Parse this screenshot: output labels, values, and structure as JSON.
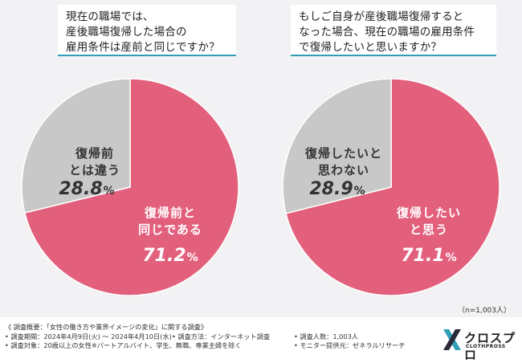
{
  "colors": {
    "pink": "#e3607d",
    "gray": "#c8c8c8",
    "accent": "#2f9fb8",
    "panel": "#f2f2f4"
  },
  "charts": [
    {
      "question_lines": [
        "現在の職場では、",
        "産後職場復帰した場合の",
        "雇用条件は産前と同じですか？"
      ],
      "label_lines": {
        "segment-0": [
          "復帰前と",
          "同じである"
        ],
        "segment-1": [
          "復帰前",
          "とは違う"
        ]
      }
    },
    {
      "question_lines": [
        "もしご自身が産後職場復帰すると",
        "なった場合、現在の職場の雇用条件",
        "で復帰したいと思いますか？"
      ],
      "label_lines": {
        "segment-0": [
          "復帰したい",
          "と思う"
        ],
        "segment-1": [
          "復帰したいと",
          "思わない"
        ]
      }
    }
  ],
  "chart_data": [
    {
      "type": "pie",
      "title": "現在の職場では、産後職場復帰した場合の雇用条件は産前と同じですか？",
      "categories": [
        "復帰前と同じである",
        "復帰前とは違う"
      ],
      "values": [
        71.2,
        28.8
      ],
      "value_labels": [
        {
          "num": "71.2",
          "sign": "%"
        },
        {
          "num": "28.8",
          "sign": "%"
        }
      ]
    },
    {
      "type": "pie",
      "title": "もしご自身が産後職場復帰するとなった場合、現在の職場の雇用条件で復帰したいと思いますか？",
      "categories": [
        "復帰したいと思う",
        "復帰したいと思わない"
      ],
      "values": [
        71.1,
        28.9
      ],
      "value_labels": [
        {
          "num": "71.1",
          "sign": "%"
        },
        {
          "num": "28.9",
          "sign": "%"
        }
      ]
    }
  ],
  "sample_note": "（n=1,003人）",
  "footer": {
    "survey_title": "《 調査概要：「女性の働き方や業界イメージの変化」に関する調査》",
    "period": "• 調査期間：2024年4月9日(火) ～ 2024年4月10日(水)",
    "method": "• 調査方法：インターネット調査",
    "count": "• 調査人数：1,003人",
    "target": "• 調査対象：20歳以上の女性※パートアルバイト、学生、無職、専業主婦を除く",
    "provider": "• モニター提供元：ゼネラルリサーチ"
  },
  "logo": {
    "name": "クロスプロ",
    "sub": "CLOTHPROSS"
  }
}
